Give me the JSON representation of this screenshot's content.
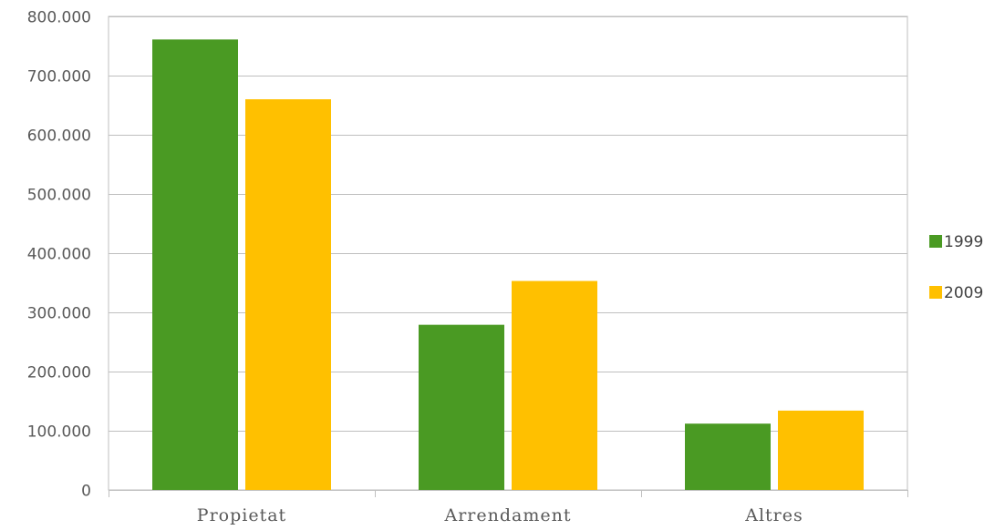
{
  "chart_data": {
    "type": "bar",
    "title": "",
    "xlabel": "",
    "ylabel": "",
    "categories": [
      "Propietat",
      "Arrendament",
      "Altres"
    ],
    "series": [
      {
        "name": "1999",
        "color": "#4a9a23",
        "values": [
          761000,
          279000,
          112000
        ]
      },
      {
        "name": "2009",
        "color": "#ffc000",
        "values": [
          660000,
          353000,
          134000
        ]
      }
    ],
    "ylim": [
      0,
      800000
    ],
    "yticks": [
      0,
      100000,
      200000,
      300000,
      400000,
      500000,
      600000,
      700000,
      800000
    ],
    "ytick_labels": [
      "0",
      "100.000",
      "200.000",
      "300.000",
      "400.000",
      "500.000",
      "600.000",
      "700.000",
      "800.000"
    ],
    "grid": true,
    "legend_position": "right"
  }
}
